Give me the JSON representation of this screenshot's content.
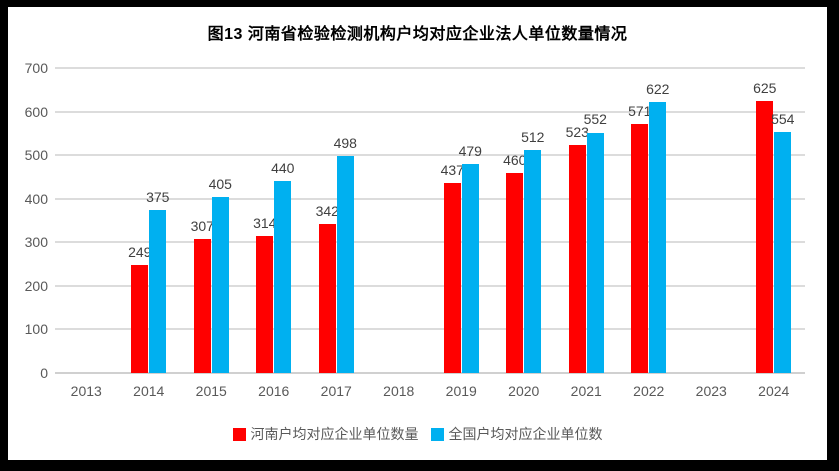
{
  "title": "图13  河南省检验检测机构户均对应企业法人单位数量情况",
  "chart_data": {
    "type": "bar",
    "title": "图13  河南省检验检测机构户均对应企业法人单位数量情况",
    "categories": [
      "2013",
      "2014",
      "2015",
      "2016",
      "2017",
      "2018",
      "2019",
      "2020",
      "2021",
      "2022",
      "2023",
      "2024"
    ],
    "series": [
      {
        "key": "henan",
        "name": "河南户均对应企业单位数量",
        "color": "#FF0000",
        "values": [
          null,
          249,
          307,
          314,
          342,
          null,
          437,
          460,
          523,
          571,
          null,
          625
        ]
      },
      {
        "key": "national",
        "name": "全国户均对应企业单位数",
        "color": "#00B0F0",
        "values": [
          null,
          375,
          405,
          440,
          498,
          null,
          479,
          512,
          552,
          622,
          null,
          554
        ]
      }
    ],
    "xlabel": "",
    "ylabel": "",
    "ylim": [
      0,
      700
    ],
    "yticks": [
      0,
      100,
      200,
      300,
      400,
      500,
      600,
      700
    ],
    "grid": true,
    "data_labels": true,
    "legend_position": "bottom"
  },
  "colors": {
    "series_henan": "#FF0000",
    "series_national": "#00B0F0",
    "gridline": "#DCDCDC",
    "axis_text": "#595959",
    "data_label_text": "#404040",
    "title_text": "#000000",
    "frame": "#000000",
    "background": "#FFFFFF"
  }
}
